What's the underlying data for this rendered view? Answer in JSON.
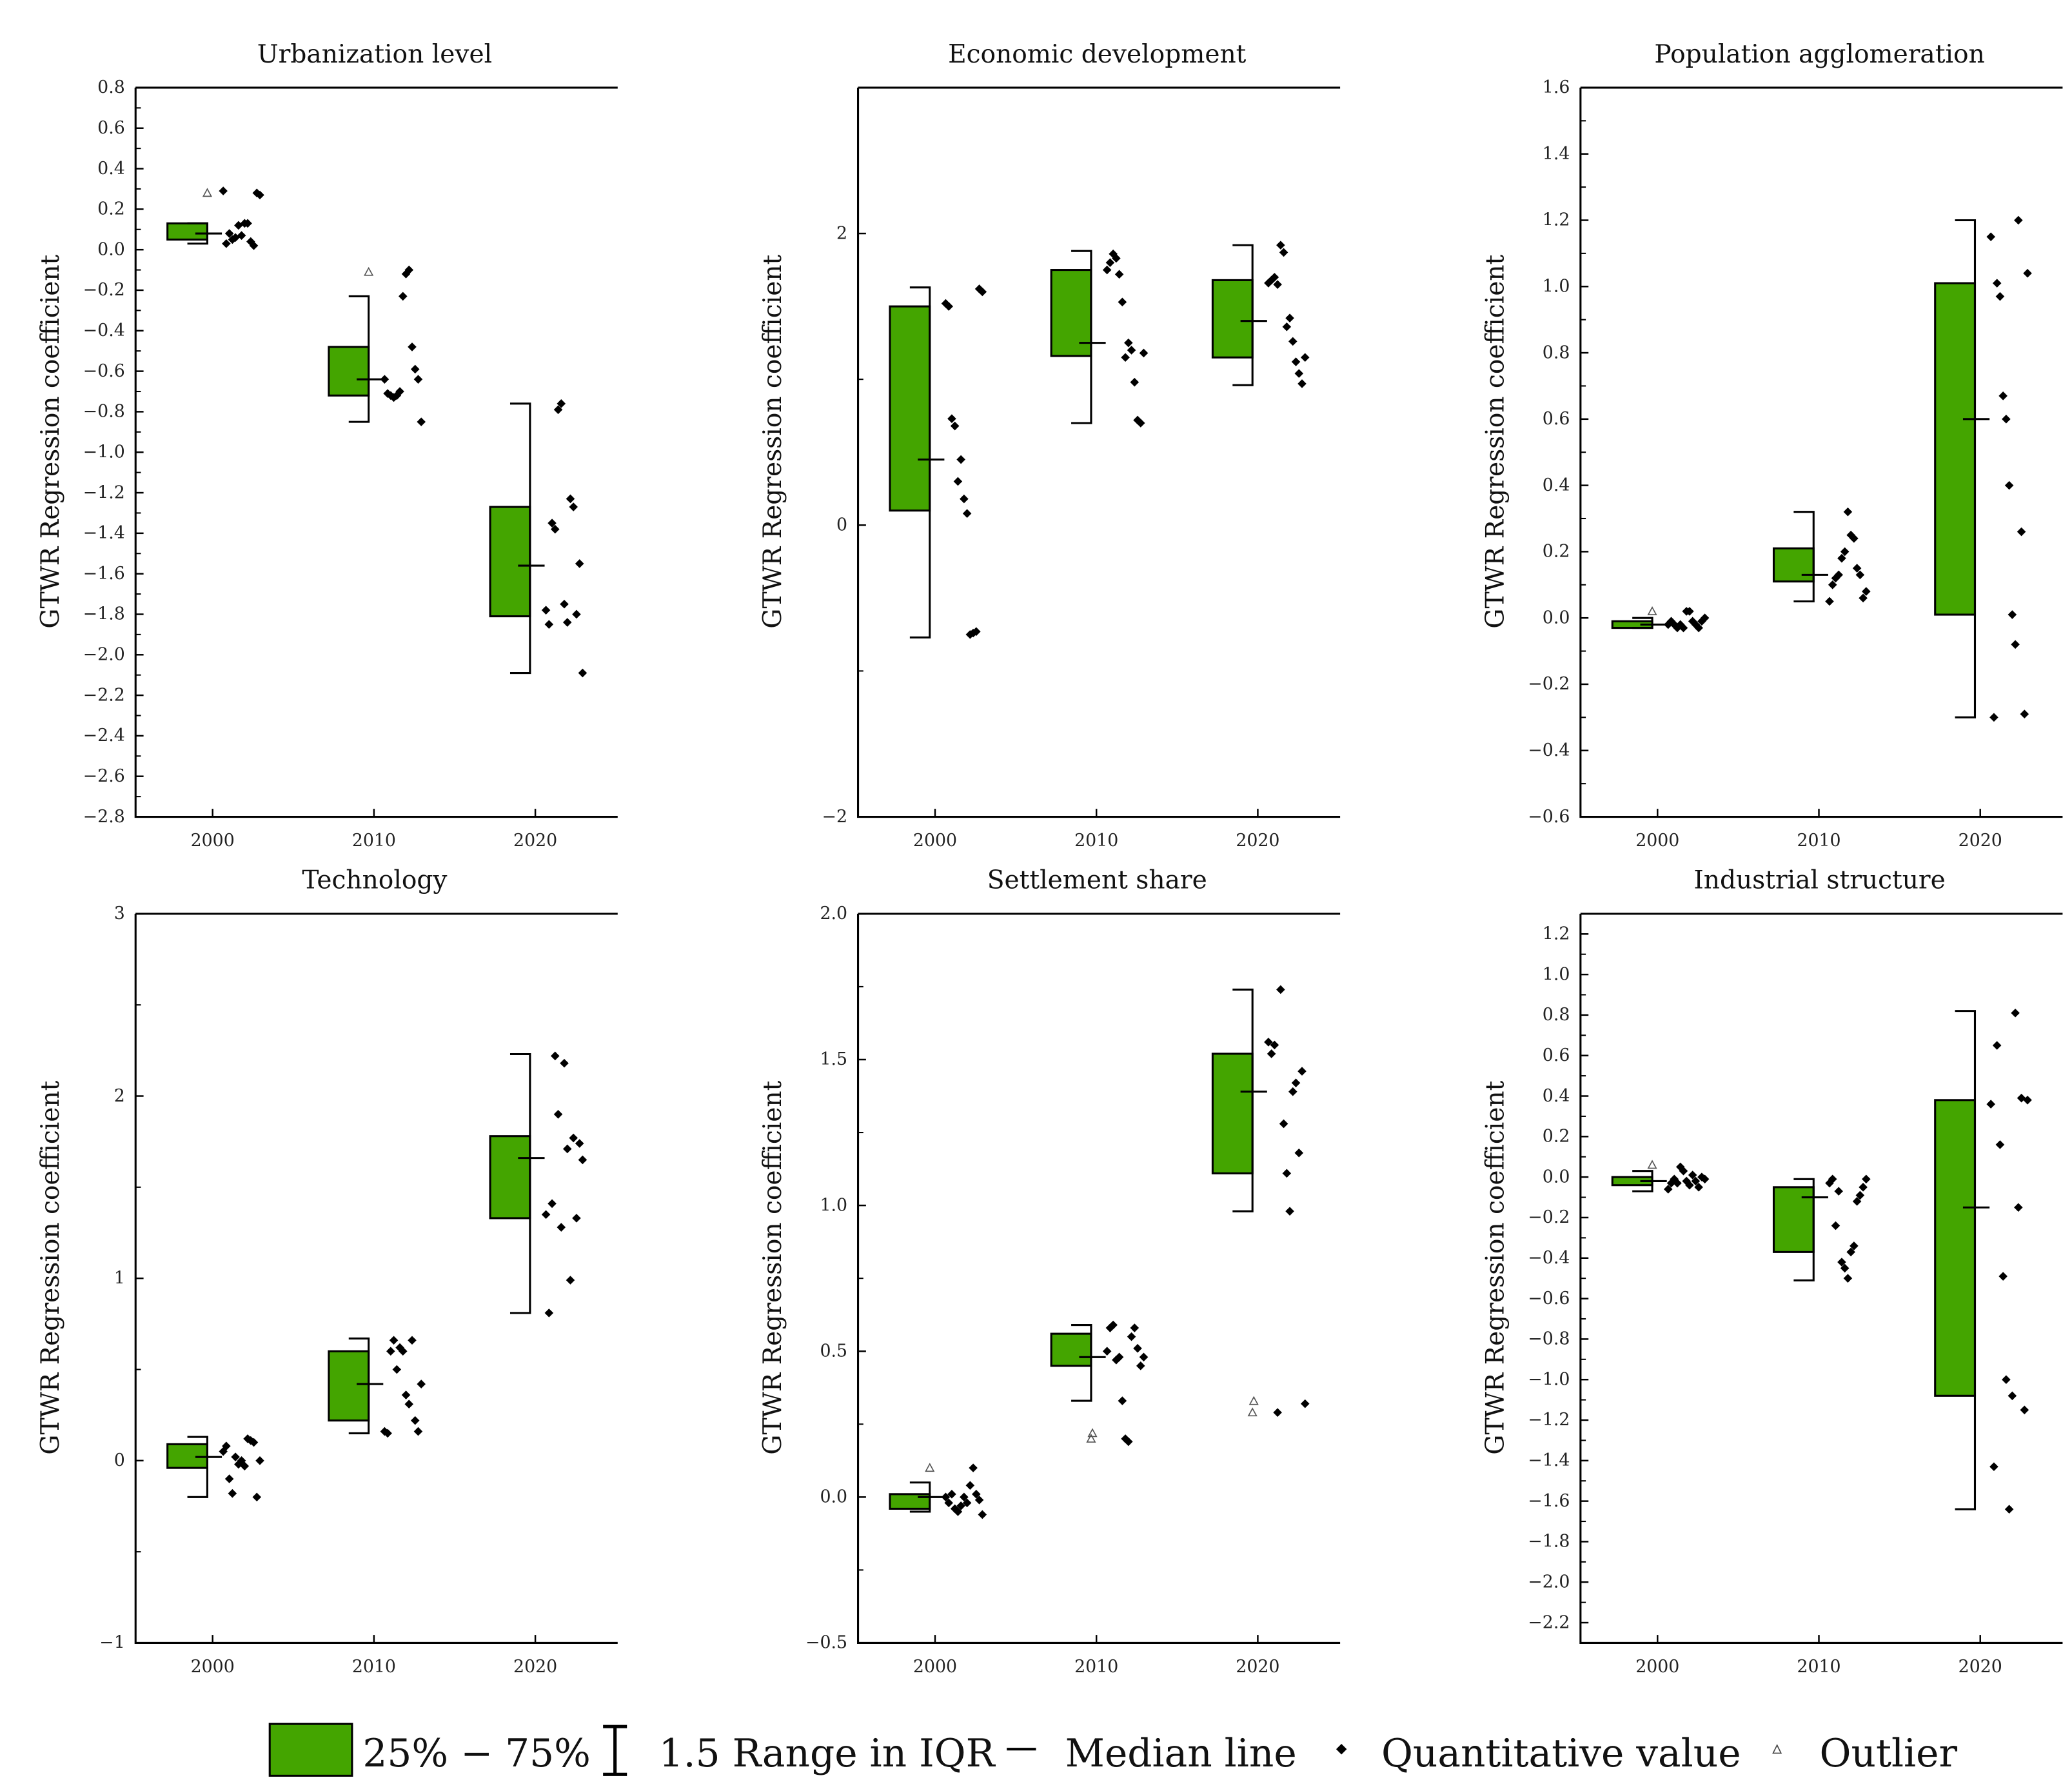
{
  "colors": {
    "box": "#44a500",
    "stroke": "#000000"
  },
  "legend": {
    "box_label": "25% − 75%",
    "whisker_label": "1.5 Range in IQR",
    "median_label": "Median line",
    "point_label": "Quantitative value",
    "outlier_label": "Outlier"
  },
  "chart_data": [
    {
      "type": "box",
      "title": "Urbanization level",
      "ylabel": "GTWR Regression coefficient",
      "categories": [
        "2000",
        "2010",
        "2020"
      ],
      "ylim": [
        -2.8,
        0.8
      ],
      "yticks": [
        0.8,
        0.6,
        0.4,
        0.2,
        0.0,
        -0.2,
        -0.4,
        -0.6,
        -0.8,
        -1.0,
        -1.2,
        -1.4,
        -1.6,
        -1.8,
        -2.0,
        -2.2,
        -2.4,
        -2.6,
        -2.8
      ],
      "tick_decimals": 1,
      "boxes": [
        {
          "q1": 0.05,
          "q3": 0.13,
          "median": 0.08,
          "wlow": 0.03,
          "whigh": 0.13,
          "outliers": [
            0.28
          ],
          "points": [
            0.29,
            0.03,
            0.08,
            0.05,
            0.06,
            0.12,
            0.07,
            0.13,
            0.13,
            0.04,
            0.02,
            0.28,
            0.27
          ]
        },
        {
          "q1": -0.72,
          "q3": -0.48,
          "median": -0.64,
          "wlow": -0.85,
          "whigh": -0.23,
          "outliers": [
            -0.11
          ],
          "points": [
            -0.64,
            -0.71,
            -0.72,
            -0.73,
            -0.72,
            -0.7,
            -0.23,
            -0.12,
            -0.1,
            -0.48,
            -0.59,
            -0.64,
            -0.85
          ]
        },
        {
          "q1": -1.81,
          "q3": -1.27,
          "median": -1.56,
          "wlow": -2.09,
          "whigh": -0.76,
          "outliers": [],
          "points": [
            -1.78,
            -1.85,
            -1.35,
            -1.38,
            -0.79,
            -0.76,
            -1.75,
            -1.84,
            -1.23,
            -1.27,
            -1.8,
            -1.55,
            -2.09
          ]
        }
      ]
    },
    {
      "type": "box",
      "title": "Economic development",
      "ylabel": "GTWR Regression coefficient",
      "categories": [
        "2000",
        "2010",
        "2020"
      ],
      "ylim": [
        -2,
        3
      ],
      "yticks": [
        2,
        0,
        -2
      ],
      "tick_decimals": 0,
      "boxes": [
        {
          "q1": 0.1,
          "q3": 1.5,
          "median": 0.45,
          "wlow": -0.77,
          "whigh": 1.63,
          "outliers": [],
          "points": [
            1.52,
            1.5,
            0.73,
            0.68,
            0.3,
            0.45,
            0.18,
            0.08,
            -0.75,
            -0.74,
            -0.73,
            1.62,
            1.6
          ]
        },
        {
          "q1": 1.16,
          "q3": 1.75,
          "median": 1.25,
          "wlow": 0.7,
          "whigh": 1.88,
          "outliers": [],
          "points": [
            1.75,
            1.8,
            1.86,
            1.83,
            1.72,
            1.53,
            1.15,
            1.25,
            1.2,
            0.98,
            0.72,
            0.7,
            1.18
          ]
        },
        {
          "q1": 1.15,
          "q3": 1.68,
          "median": 1.4,
          "wlow": 0.96,
          "whigh": 1.92,
          "outliers": [],
          "points": [
            1.66,
            1.68,
            1.7,
            1.65,
            1.92,
            1.87,
            1.36,
            1.42,
            1.26,
            1.12,
            1.04,
            0.97,
            1.15
          ]
        }
      ]
    },
    {
      "type": "box",
      "title": "Population agglomeration",
      "ylabel": "GTWR Regression coefficient",
      "categories": [
        "2000",
        "2010",
        "2020"
      ],
      "ylim": [
        -0.6,
        1.6
      ],
      "yticks": [
        1.6,
        1.4,
        1.2,
        1.0,
        0.8,
        0.6,
        0.4,
        0.2,
        0.0,
        -0.2,
        -0.4,
        -0.6
      ],
      "tick_decimals": 1,
      "boxes": [
        {
          "q1": -0.03,
          "q3": -0.01,
          "median": -0.02,
          "wlow": -0.03,
          "whigh": 0.0,
          "outliers": [
            0.02
          ],
          "points": [
            -0.02,
            -0.01,
            -0.02,
            -0.03,
            -0.02,
            -0.03,
            0.02,
            0.02,
            -0.01,
            -0.02,
            -0.03,
            -0.01,
            0.0
          ]
        },
        {
          "q1": 0.11,
          "q3": 0.21,
          "median": 0.13,
          "wlow": 0.05,
          "whigh": 0.32,
          "outliers": [],
          "points": [
            0.05,
            0.1,
            0.12,
            0.13,
            0.18,
            0.2,
            0.32,
            0.25,
            0.24,
            0.15,
            0.13,
            0.06,
            0.08
          ]
        },
        {
          "q1": 0.01,
          "q3": 1.01,
          "median": 0.6,
          "wlow": -0.3,
          "whigh": 1.2,
          "outliers": [],
          "points": [
            1.15,
            -0.3,
            1.01,
            0.97,
            0.67,
            0.6,
            0.4,
            0.01,
            -0.08,
            1.2,
            0.26,
            -0.29,
            1.04
          ]
        }
      ]
    },
    {
      "type": "box",
      "title": "Technology",
      "ylabel": "GTWR Regression coefficient",
      "categories": [
        "2000",
        "2010",
        "2020"
      ],
      "ylim": [
        -1,
        3
      ],
      "yticks": [
        3,
        2,
        1,
        0,
        -1
      ],
      "tick_decimals": 0,
      "boxes": [
        {
          "q1": -0.04,
          "q3": 0.09,
          "median": 0.02,
          "wlow": -0.2,
          "whigh": 0.13,
          "outliers": [],
          "points": [
            0.05,
            0.08,
            -0.1,
            -0.18,
            0.02,
            -0.02,
            0.0,
            -0.03,
            0.12,
            0.11,
            0.1,
            -0.2,
            0.0
          ]
        },
        {
          "q1": 0.22,
          "q3": 0.6,
          "median": 0.42,
          "wlow": 0.15,
          "whigh": 0.67,
          "outliers": [],
          "points": [
            0.16,
            0.15,
            0.6,
            0.66,
            0.5,
            0.62,
            0.6,
            0.36,
            0.31,
            0.66,
            0.22,
            0.16,
            0.42
          ]
        },
        {
          "q1": 1.33,
          "q3": 1.78,
          "median": 1.66,
          "wlow": 0.81,
          "whigh": 2.23,
          "outliers": [],
          "points": [
            1.35,
            0.81,
            1.41,
            2.22,
            1.9,
            1.28,
            2.18,
            1.71,
            0.99,
            1.77,
            1.33,
            1.74,
            1.65
          ]
        }
      ]
    },
    {
      "type": "box",
      "title": "Settlement share",
      "ylabel": "GTWR Regression coefficient",
      "categories": [
        "2000",
        "2010",
        "2020"
      ],
      "ylim": [
        -0.5,
        2.0
      ],
      "yticks": [
        2.0,
        1.5,
        1.0,
        0.5,
        0.0,
        -0.5
      ],
      "tick_decimals": 1,
      "boxes": [
        {
          "q1": -0.04,
          "q3": 0.01,
          "median": 0.0,
          "wlow": -0.05,
          "whigh": 0.05,
          "outliers": [
            0.1
          ],
          "points": [
            0.0,
            -0.02,
            0.01,
            -0.04,
            -0.05,
            -0.03,
            0.0,
            -0.02,
            0.04,
            0.1,
            0.01,
            -0.01,
            -0.06
          ]
        },
        {
          "q1": 0.45,
          "q3": 0.56,
          "median": 0.48,
          "wlow": 0.33,
          "whigh": 0.59,
          "outliers": [
            0.2,
            0.21
          ],
          "points": [
            0.5,
            0.58,
            0.59,
            0.47,
            0.48,
            0.33,
            0.2,
            0.19,
            0.55,
            0.58,
            0.51,
            0.45,
            0.48
          ]
        },
        {
          "q1": 1.11,
          "q3": 1.52,
          "median": 1.39,
          "wlow": 0.98,
          "whigh": 1.74,
          "outliers": [
            0.29,
            0.32
          ],
          "points": [
            1.56,
            1.52,
            1.55,
            0.29,
            1.74,
            1.28,
            1.11,
            0.98,
            1.39,
            1.42,
            1.18,
            1.46,
            0.32
          ]
        }
      ]
    },
    {
      "type": "box",
      "title": "Industrial structure",
      "ylabel": "GTWR Regression coefficient",
      "categories": [
        "2000",
        "2010",
        "2020"
      ],
      "ylim": [
        -2.3,
        1.3
      ],
      "yticks": [
        1.2,
        1.0,
        0.8,
        0.6,
        0.4,
        0.2,
        0.0,
        -0.2,
        -0.4,
        -0.6,
        -0.8,
        -1.0,
        -1.2,
        -1.4,
        -1.6,
        -1.8,
        -2.0,
        -2.2
      ],
      "tick_decimals": 1,
      "boxes": [
        {
          "q1": -0.04,
          "q3": 0.0,
          "median": -0.02,
          "wlow": -0.07,
          "whigh": 0.03,
          "outliers": [
            0.06
          ],
          "points": [
            -0.06,
            -0.03,
            -0.01,
            -0.03,
            0.05,
            0.03,
            -0.02,
            -0.04,
            0.01,
            -0.02,
            -0.05,
            0.0,
            -0.01
          ]
        },
        {
          "q1": -0.37,
          "q3": -0.05,
          "median": -0.1,
          "wlow": -0.51,
          "whigh": -0.01,
          "outliers": [],
          "points": [
            -0.03,
            -0.01,
            -0.24,
            -0.07,
            -0.42,
            -0.45,
            -0.5,
            -0.37,
            -0.34,
            -0.12,
            -0.09,
            -0.05,
            -0.01
          ]
        },
        {
          "q1": -1.08,
          "q3": 0.38,
          "median": -0.15,
          "wlow": -1.64,
          "whigh": 0.82,
          "outliers": [],
          "points": [
            0.36,
            -1.43,
            0.65,
            0.16,
            -0.49,
            -1.0,
            -1.64,
            -1.08,
            0.81,
            -0.15,
            0.39,
            -1.15,
            0.38
          ]
        }
      ]
    }
  ]
}
